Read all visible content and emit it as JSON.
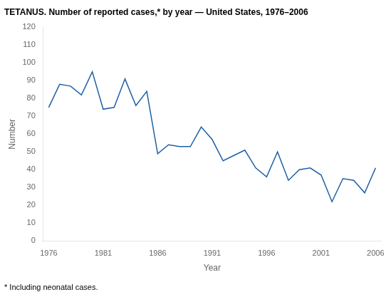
{
  "chart_data": {
    "type": "line",
    "title": "TETANUS. Number of reported cases,* by year — United States, 1976–2006",
    "xlabel": "Year",
    "ylabel": "Number",
    "annotations": [
      "* Including neonatal cases."
    ],
    "x": [
      1976,
      1977,
      1978,
      1979,
      1980,
      1981,
      1982,
      1983,
      1984,
      1985,
      1986,
      1987,
      1988,
      1989,
      1990,
      1991,
      1992,
      1993,
      1994,
      1995,
      1996,
      1997,
      1998,
      1999,
      2000,
      2001,
      2002,
      2003,
      2004,
      2005,
      2006
    ],
    "values": [
      75,
      88,
      87,
      82,
      95,
      74,
      75,
      91,
      76,
      84,
      49,
      54,
      53,
      53,
      64,
      57,
      45,
      48,
      51,
      41,
      36,
      50,
      34,
      40,
      41,
      37,
      22,
      35,
      34,
      27,
      41
    ],
    "color": "#1F5FA6",
    "xlim": [
      1975.5,
      2006.5
    ],
    "xticks": [
      1976,
      1981,
      1986,
      1991,
      1996,
      2001,
      2006
    ],
    "ylim": [
      0,
      120
    ],
    "yticks": [
      0,
      10,
      20,
      30,
      40,
      50,
      60,
      70,
      80,
      90,
      100,
      110,
      120
    ],
    "grid": false
  }
}
